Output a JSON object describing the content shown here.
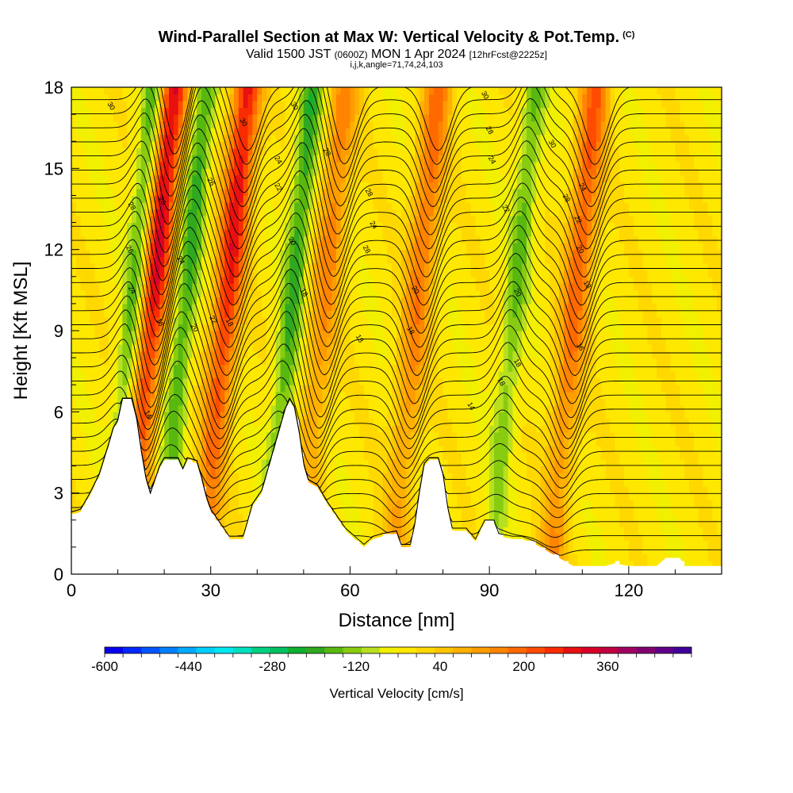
{
  "title": {
    "main": "Wind-Parallel Section at Max W: Vertical Velocity & Pot.Temp.",
    "copyright": "(C)",
    "valid_prefix": "Valid 1500 JST",
    "valid_utc": "(0600Z)",
    "valid_date": "MON 1 Apr 2024",
    "forecast": "[12hrFcst@2225z]",
    "indices": "i,j,k,angle=71,74,24,103"
  },
  "chart_data": {
    "type": "heatmap",
    "xlabel": "Distance [nm]",
    "ylabel": "Height [Kft MSL]",
    "xlim": [
      0,
      140
    ],
    "ylim": [
      0,
      18
    ],
    "x_ticks": [
      "0",
      "30",
      "60",
      "90",
      "120"
    ],
    "y_ticks": [
      "0",
      "3",
      "6",
      "9",
      "12",
      "15",
      "18"
    ],
    "colorbar": {
      "title": "Vertical Velocity [cm/s]",
      "labels": [
        "-600",
        "-440",
        "-280",
        "-120",
        "40",
        "200",
        "360"
      ],
      "label_values": [
        -600,
        -440,
        -280,
        -120,
        40,
        200,
        360
      ],
      "range": [
        -600,
        520
      ],
      "step": 40,
      "colors": [
        "#0a00f0",
        "#0028ff",
        "#0055ff",
        "#0080ff",
        "#00aaff",
        "#00cfff",
        "#00e8f0",
        "#00e0c0",
        "#00d080",
        "#00c060",
        "#10b030",
        "#30a820",
        "#58b810",
        "#88cc10",
        "#b8e020",
        "#f0f000",
        "#ffe800",
        "#ffd800",
        "#ffc400",
        "#ffb000",
        "#ff9c00",
        "#ff8400",
        "#ff6a00",
        "#ff4c00",
        "#f82c00",
        "#e81010",
        "#d80028",
        "#c00040",
        "#a00060",
        "#800070",
        "#600088",
        "#40009a"
      ]
    },
    "wave_columns_nm": {
      "updraft": [
        17,
        33,
        54,
        74,
        108
      ],
      "downdraft": [
        13,
        24,
        47,
        95
      ]
    },
    "theta_contour_labels": [
      "14",
      "16",
      "18",
      "20",
      "22",
      "24",
      "26",
      "28",
      "30"
    ],
    "terrain_peaks_kft": [
      {
        "x": 11,
        "y": 6.4
      },
      {
        "x": 21,
        "y": 4.2
      },
      {
        "x": 25,
        "y": 4.2
      },
      {
        "x": 47,
        "y": 6.4
      },
      {
        "x": 78,
        "y": 4.2
      }
    ]
  }
}
